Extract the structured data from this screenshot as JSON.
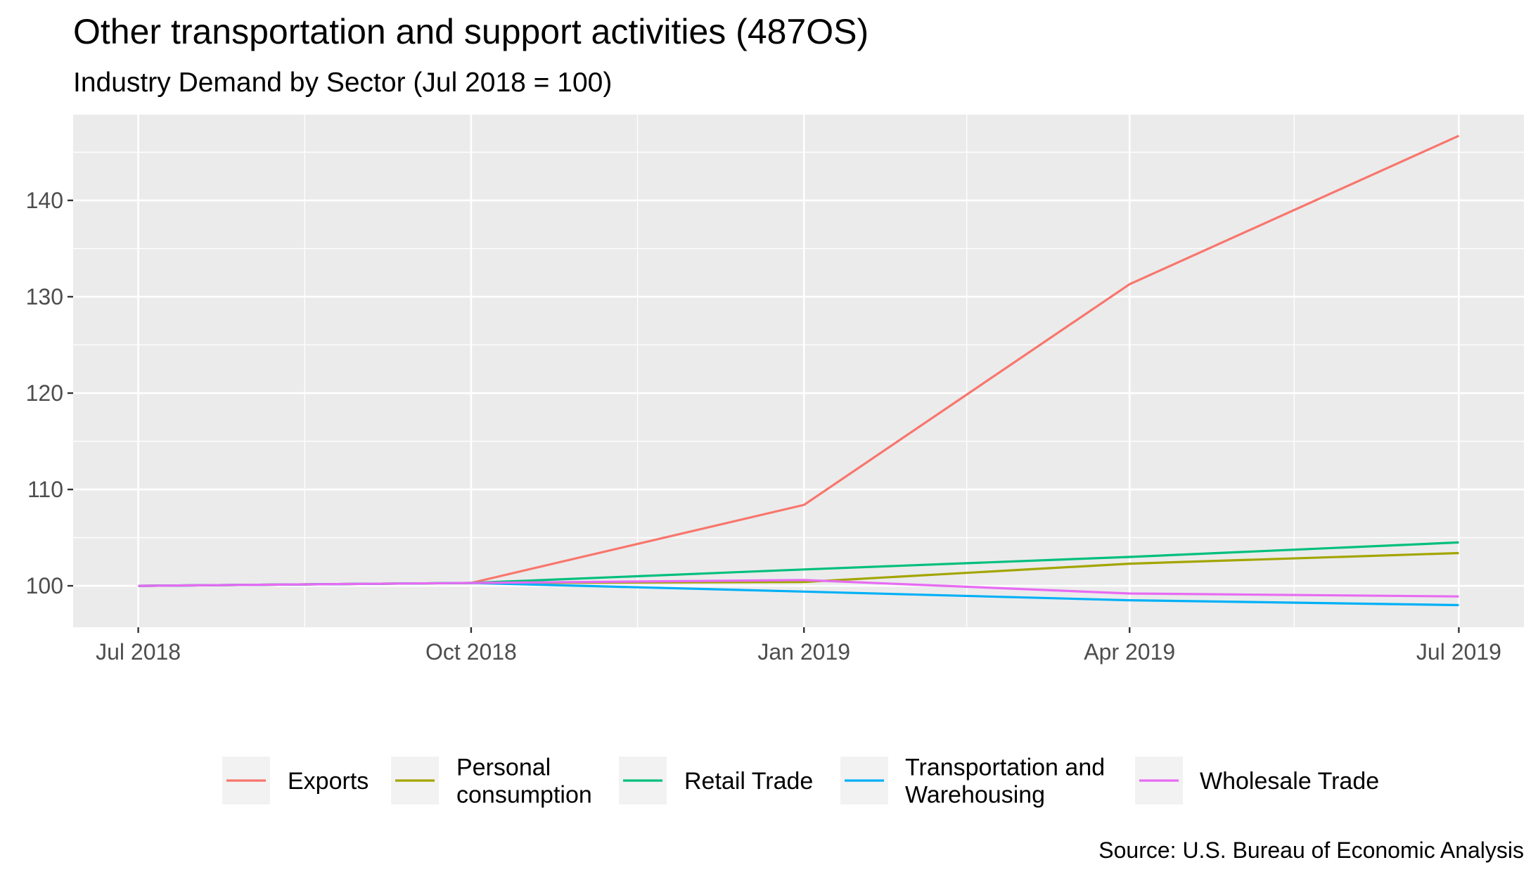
{
  "chart_data": {
    "type": "line",
    "title": "Other transportation and support activities (487OS)",
    "subtitle": "Industry Demand by Sector (Jul 2018 = 100)",
    "caption": "Source: U.S. Bureau of Economic Analysis",
    "xlabel": "",
    "ylabel": "",
    "x": [
      "2018-07-01",
      "2018-10-01",
      "2019-01-01",
      "2019-04-01",
      "2019-07-01"
    ],
    "x_tick_labels": [
      "Jul 2018",
      "Oct 2018",
      "Jan 2019",
      "Apr 2019",
      "Jul 2019"
    ],
    "x_range": [
      "2018-06-13",
      "2019-07-19"
    ],
    "y_ticks": [
      100,
      110,
      120,
      130,
      140
    ],
    "ylim": [
      95.7,
      148.9
    ],
    "grid": true,
    "legend_position": "bottom",
    "series": [
      {
        "name": "Exports",
        "color": "#F8766D",
        "values": [
          100,
          100.3,
          108.4,
          131.3,
          146.7
        ]
      },
      {
        "name": "Personal consumption",
        "color": "#A3A500",
        "values": [
          100,
          100.3,
          100.4,
          102.3,
          103.4
        ]
      },
      {
        "name": "Retail Trade",
        "color": "#00BF7D",
        "values": [
          100,
          100.3,
          101.7,
          103.0,
          104.5
        ]
      },
      {
        "name": "Transportation and Warehousing",
        "color": "#00B0F6",
        "values": [
          100,
          100.3,
          99.4,
          98.5,
          98.0
        ]
      },
      {
        "name": "Wholesale Trade",
        "color": "#E76BF3",
        "values": [
          100,
          100.3,
          100.6,
          99.2,
          98.9
        ]
      }
    ],
    "legend_labels": [
      [
        "Exports"
      ],
      [
        "Personal",
        "consumption"
      ],
      [
        "Retail Trade"
      ],
      [
        "Transportation and",
        "Warehousing"
      ],
      [
        "Wholesale Trade"
      ]
    ]
  }
}
